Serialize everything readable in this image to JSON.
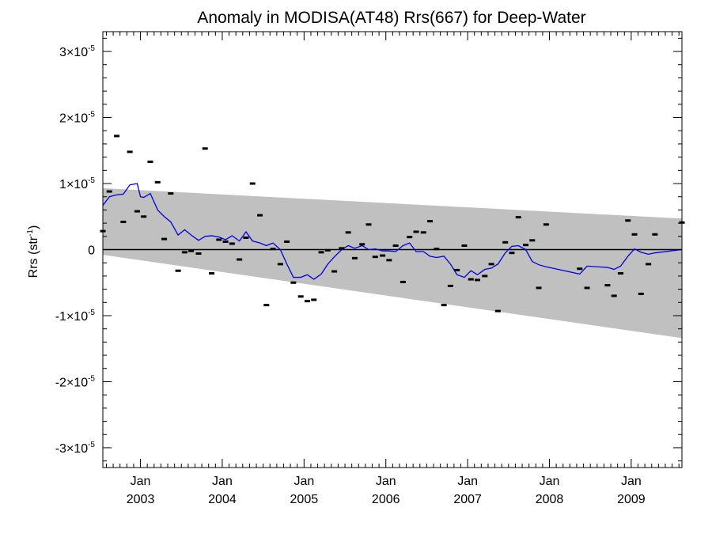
{
  "chart_data": {
    "type": "scatter",
    "title": "Anomaly in MODISA(AT48) Rrs(667) for Deep-Water",
    "ylabel_main": "Rrs (str",
    "ylabel_sup": "-1",
    "ylabel_tail": ")",
    "xlabel": "",
    "y_scale_sup": "-5",
    "xlim": [
      2002.54,
      2009.62
    ],
    "ylim": [
      -3.3e-05,
      3.3e-05
    ],
    "y_ticks": [
      {
        "value": -3e-05,
        "mant": "-3×10",
        "exp": "-5"
      },
      {
        "value": -2e-05,
        "mant": "-2×10",
        "exp": "-5"
      },
      {
        "value": -1e-05,
        "mant": "-1×10",
        "exp": "-5"
      },
      {
        "value": 0,
        "mant": "0",
        "exp": ""
      },
      {
        "value": 1e-05,
        "mant": "1×10",
        "exp": "-5"
      },
      {
        "value": 2e-05,
        "mant": "2×10",
        "exp": "-5"
      },
      {
        "value": 3e-05,
        "mant": "3×10",
        "exp": "-5"
      }
    ],
    "x_ticks": [
      {
        "value": 2003.0,
        "month": "Jan",
        "year": "2003"
      },
      {
        "value": 2004.0,
        "month": "Jan",
        "year": "2004"
      },
      {
        "value": 2005.0,
        "month": "Jan",
        "year": "2005"
      },
      {
        "value": 2006.0,
        "month": "Jan",
        "year": "2006"
      },
      {
        "value": 2007.0,
        "month": "Jan",
        "year": "2007"
      },
      {
        "value": 2008.0,
        "month": "Jan",
        "year": "2008"
      },
      {
        "value": 2009.0,
        "month": "Jan",
        "year": "2009"
      }
    ],
    "band": {
      "start_x": 2002.54,
      "end_x": 2009.62,
      "upper_start": 9.3e-06,
      "upper_end": 4.7e-06,
      "lower_start": -8e-07,
      "lower_end": -1.34e-05
    },
    "grid": false,
    "zero_line": true,
    "colors": {
      "band": "#c0c0c0",
      "line": "#0000e0",
      "points": "#000000",
      "zero": "#000000"
    },
    "series": [
      {
        "kind": "points",
        "x": [
          2002.54,
          2002.62,
          2002.71,
          2002.79,
          2002.87,
          2002.96,
          2003.04,
          2003.12,
          2003.21,
          2003.29,
          2003.37,
          2003.46,
          2003.54,
          2003.62,
          2003.71,
          2003.79,
          2003.87,
          2003.96,
          2004.04,
          2004.12,
          2004.21,
          2004.29,
          2004.37,
          2004.46,
          2004.54,
          2004.62,
          2004.71,
          2004.79,
          2004.87,
          2004.96,
          2005.04,
          2005.12,
          2005.21,
          2005.29,
          2005.37,
          2005.46,
          2005.54,
          2005.62,
          2005.71,
          2005.79,
          2005.87,
          2005.96,
          2006.04,
          2006.12,
          2006.21,
          2006.29,
          2006.37,
          2006.46,
          2006.54,
          2006.62,
          2006.71,
          2006.79,
          2006.87,
          2006.96,
          2007.04,
          2007.12,
          2007.21,
          2007.29,
          2007.37,
          2007.46,
          2007.54,
          2007.62,
          2007.71,
          2007.79,
          2007.87,
          2007.96,
          2008.37,
          2008.46,
          2008.71,
          2008.79,
          2008.87,
          2008.96,
          2009.04,
          2009.12,
          2009.21,
          2009.29,
          2009.62
        ],
        "y": [
          2.8e-06,
          8.8e-06,
          1.72e-05,
          4.2e-06,
          1.48e-05,
          5.8e-06,
          5e-06,
          1.33e-05,
          1.02e-05,
          1.6e-06,
          8.5e-06,
          -3.2e-06,
          -4e-07,
          -2e-07,
          -6e-07,
          1.53e-05,
          -3.6e-06,
          1.5e-06,
          1.2e-06,
          9e-07,
          -1.5e-06,
          1.8e-06,
          1e-05,
          5.2e-06,
          -8.4e-06,
          1e-07,
          -2.2e-06,
          1.2e-06,
          -5e-06,
          -7.1e-06,
          -7.8e-06,
          -7.6e-06,
          -4e-07,
          -1e-07,
          -3.3e-06,
          2e-07,
          2.6e-06,
          -1.3e-06,
          8e-07,
          3.8e-06,
          -1.1e-06,
          -9e-07,
          -1.6e-06,
          6e-07,
          -4.9e-06,
          1.9e-06,
          2.7e-06,
          2.6e-06,
          4.3e-06,
          1e-07,
          -8.4e-06,
          -5.5e-06,
          -3.1e-06,
          6e-07,
          -4.5e-06,
          -4.6e-06,
          -4e-06,
          -2.2e-06,
          -9.3e-06,
          1.1e-06,
          -5e-07,
          4.9e-06,
          7e-07,
          1.4e-06,
          -5.8e-06,
          3.8e-06,
          -2.9e-06,
          -5.8e-06,
          -5.4e-06,
          -7e-06,
          -3.6e-06,
          4.4e-06,
          2.3e-06,
          -6.7e-06,
          -2.2e-06,
          2.3e-06,
          4.1e-06
        ]
      },
      {
        "kind": "line",
        "x": [
          2002.54,
          2002.62,
          2002.71,
          2002.79,
          2002.87,
          2002.96,
          2003.0,
          2003.04,
          2003.12,
          2003.21,
          2003.29,
          2003.37,
          2003.46,
          2003.54,
          2003.62,
          2003.71,
          2003.79,
          2003.87,
          2003.96,
          2004.04,
          2004.12,
          2004.21,
          2004.29,
          2004.37,
          2004.46,
          2004.54,
          2004.62,
          2004.71,
          2004.79,
          2004.87,
          2004.96,
          2005.04,
          2005.12,
          2005.21,
          2005.29,
          2005.37,
          2005.46,
          2005.54,
          2005.62,
          2005.71,
          2005.79,
          2005.87,
          2005.96,
          2006.04,
          2006.12,
          2006.21,
          2006.29,
          2006.37,
          2006.46,
          2006.54,
          2006.62,
          2006.71,
          2006.79,
          2006.87,
          2006.96,
          2007.04,
          2007.12,
          2007.21,
          2007.29,
          2007.37,
          2007.46,
          2007.54,
          2007.62,
          2007.71,
          2007.79,
          2007.87,
          2007.96,
          2008.37,
          2008.46,
          2008.71,
          2008.79,
          2008.87,
          2008.96,
          2009.04,
          2009.12,
          2009.21,
          2009.29,
          2009.62
        ],
        "y": [
          6.7e-06,
          8e-06,
          8.3e-06,
          8.4e-06,
          9.8e-06,
          1e-05,
          8e-06,
          7.9e-06,
          8.5e-06,
          6e-06,
          5e-06,
          4.2e-06,
          2.2e-06,
          3e-06,
          2.2e-06,
          1.4e-06,
          2e-06,
          2.1e-06,
          1.9e-06,
          1.5e-06,
          2.1e-06,
          1.3e-06,
          2.7e-06,
          1.3e-06,
          1e-06,
          6e-07,
          1e-06,
          0.0,
          -2.2e-06,
          -4.2e-06,
          -4.2e-06,
          -3.8e-06,
          -4.5e-06,
          -3.7e-06,
          -2.2e-06,
          -1.1e-06,
          0.0,
          6e-07,
          2e-07,
          6e-07,
          0.0,
          1e-07,
          -2e-07,
          -2e-07,
          -3e-07,
          6e-07,
          1e-06,
          -3e-07,
          -3e-07,
          -1e-06,
          -1.2e-06,
          -1e-06,
          -2.2e-06,
          -3.8e-06,
          -4.2e-06,
          -3.2e-06,
          -3.8e-06,
          -3e-06,
          -2.8e-06,
          -2.2e-06,
          -5e-07,
          5e-07,
          6e-07,
          0.0,
          -1.8e-06,
          -2.3e-06,
          -2.6e-06,
          -3.7e-06,
          -2.5e-06,
          -2.7e-06,
          -3e-06,
          -2.5e-06,
          -1e-06,
          1e-07,
          -4e-07,
          -7e-07,
          -5e-07,
          0.0
        ]
      }
    ]
  }
}
